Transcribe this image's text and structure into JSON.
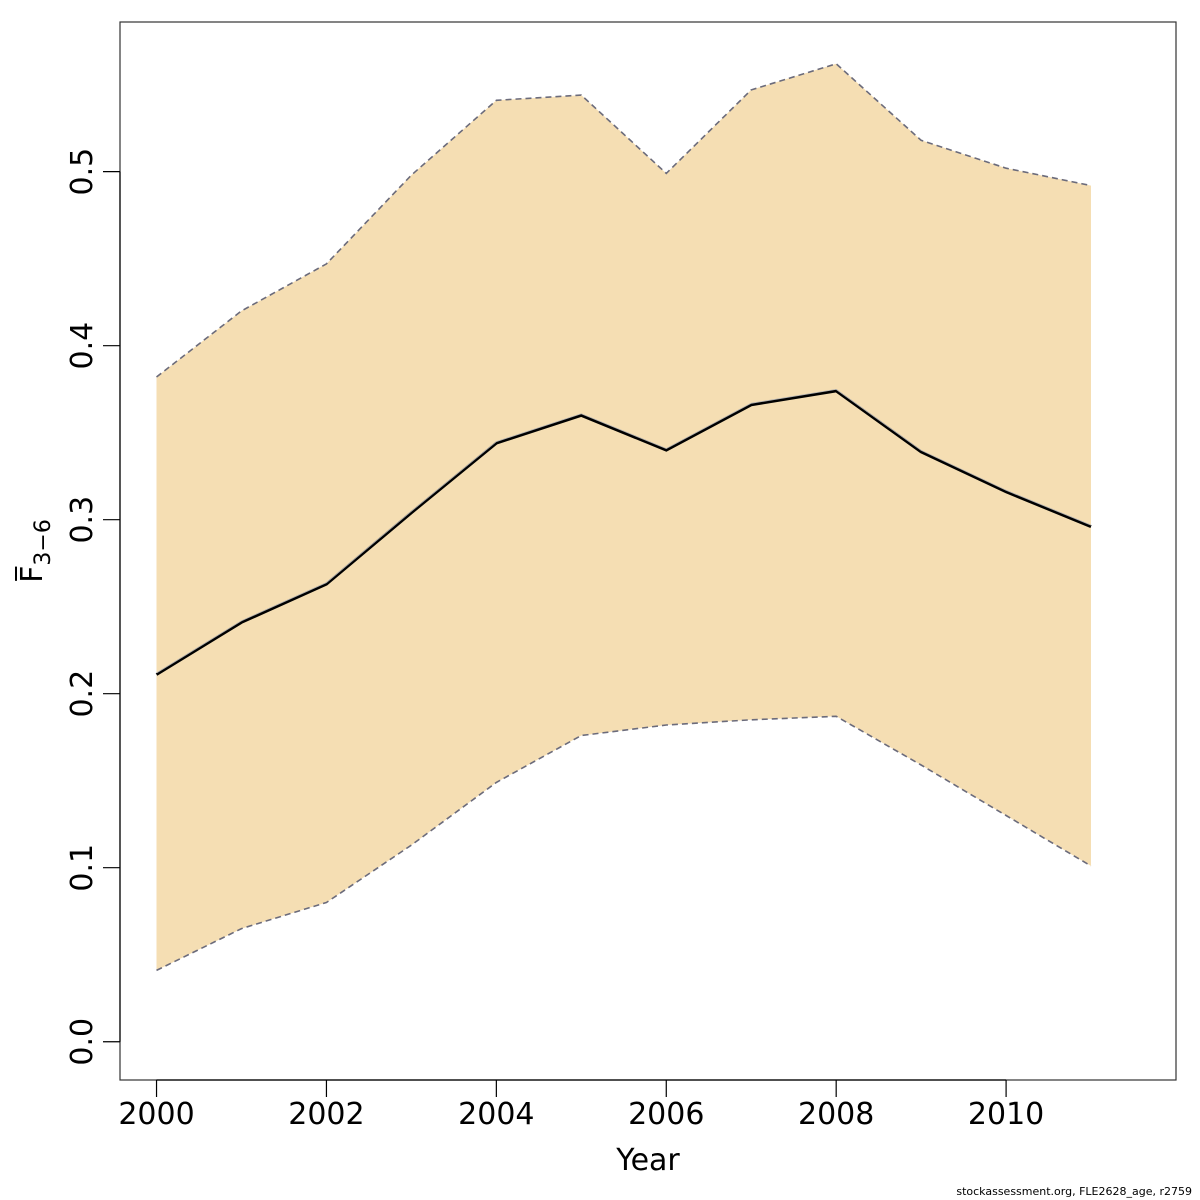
{
  "chart_data": {
    "type": "area",
    "x": [
      2000,
      2001,
      2002,
      2003,
      2004,
      2005,
      2006,
      2007,
      2008,
      2009,
      2010,
      2011
    ],
    "estimate": [
      0.211,
      0.241,
      0.263,
      0.304,
      0.344,
      0.36,
      0.34,
      0.366,
      0.374,
      0.339,
      0.316,
      0.296
    ],
    "upper": [
      0.382,
      0.42,
      0.447,
      0.498,
      0.541,
      0.544,
      0.499,
      0.547,
      0.562,
      0.518,
      0.502,
      0.492
    ],
    "lower": [
      0.041,
      0.065,
      0.08,
      0.113,
      0.149,
      0.176,
      0.182,
      0.185,
      0.187,
      0.159,
      0.13,
      0.101
    ],
    "xlim": [
      1999.57,
      2012.0
    ],
    "ylim": [
      -0.022,
      0.586
    ],
    "x_ticks": [
      2000,
      2002,
      2004,
      2006,
      2008,
      2010
    ],
    "x_tick_labels": [
      "2000",
      "2002",
      "2004",
      "2006",
      "2008",
      "2010"
    ],
    "y_ticks": [
      0.0,
      0.1,
      0.2,
      0.3,
      0.4,
      0.5
    ],
    "y_tick_labels": [
      "0.0",
      "0.1",
      "0.2",
      "0.3",
      "0.4",
      "0.5"
    ],
    "xlabel": "Year",
    "ylabel": "F",
    "ylabel_subscript": "3−6",
    "grid": false,
    "colors": {
      "band_fill": "#f5deb3",
      "bound_line": "#6b6b7b",
      "estimate_line": "#000000",
      "estimate_highlight": "#b0b0b0",
      "frame": "#333333"
    }
  },
  "footer": {
    "credit": "stockassessment.org, FLE2628_age, r2759"
  }
}
